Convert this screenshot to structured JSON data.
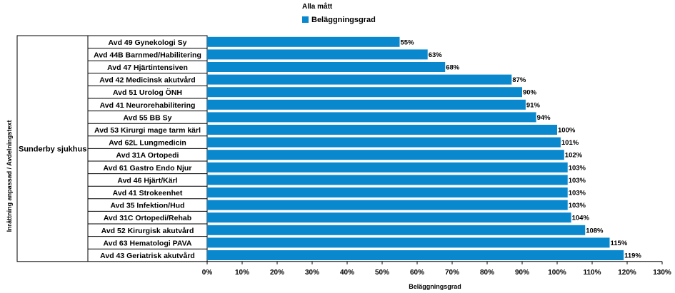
{
  "chart_data": {
    "type": "bar",
    "orientation": "horizontal",
    "legend_title": "Alla mått",
    "legend_position": "top-center",
    "series": [
      {
        "name": "Beläggningsgrad",
        "color": "#0A88CE",
        "values": [
          55,
          63,
          68,
          87,
          90,
          91,
          94,
          100,
          101,
          102,
          103,
          103,
          103,
          103,
          104,
          108,
          115,
          119
        ]
      }
    ],
    "value_labels": [
      "55%",
      "63%",
      "68%",
      "87%",
      "90%",
      "91%",
      "94%",
      "100%",
      "101%",
      "102%",
      "103%",
      "103%",
      "103%",
      "103%",
      "104%",
      "108%",
      "115%",
      "119%"
    ],
    "group_label": "Sunderby sjukhus",
    "categories": [
      "Avd 49 Gynekologi Sy",
      "Avd 44B Barnmed/Habilitering",
      "Avd 47 Hjärtintensiven",
      "Avd 42 Medicinsk akutvård",
      "Avd 51 Urolog ÖNH",
      "Avd 41 Neurorehabilitering",
      "Avd 55 BB Sy",
      "Avd 53 Kirurgi mage tarm kärl",
      "Avd 62L Lungmedicin",
      "Avd 31A Ortopedi",
      "Avd 61 Gastro Endo Njur",
      "Avd 46 Hjärt/Kärl",
      "Avd 41 Strokeenhet",
      "Avd 35 Infektion/Hud",
      "Avd 31C Ortopedi/Rehab",
      "Avd 52 Kirurgisk akutvård",
      "Avd 63 Hematologi PAVA",
      "Avd 43 Geriatrisk akutvård"
    ],
    "xlabel": "Beläggningsgrad",
    "ylabel": "Inrättning anpassad / Avdelningstext",
    "xlim": [
      0,
      130
    ],
    "xticks": [
      0,
      10,
      20,
      30,
      40,
      50,
      60,
      70,
      80,
      90,
      100,
      110,
      120,
      130
    ],
    "xtick_labels": [
      "0%",
      "10%",
      "20%",
      "30%",
      "40%",
      "50%",
      "60%",
      "70%",
      "80%",
      "90%",
      "100%",
      "110%",
      "120%",
      "130%"
    ],
    "grid": false
  }
}
